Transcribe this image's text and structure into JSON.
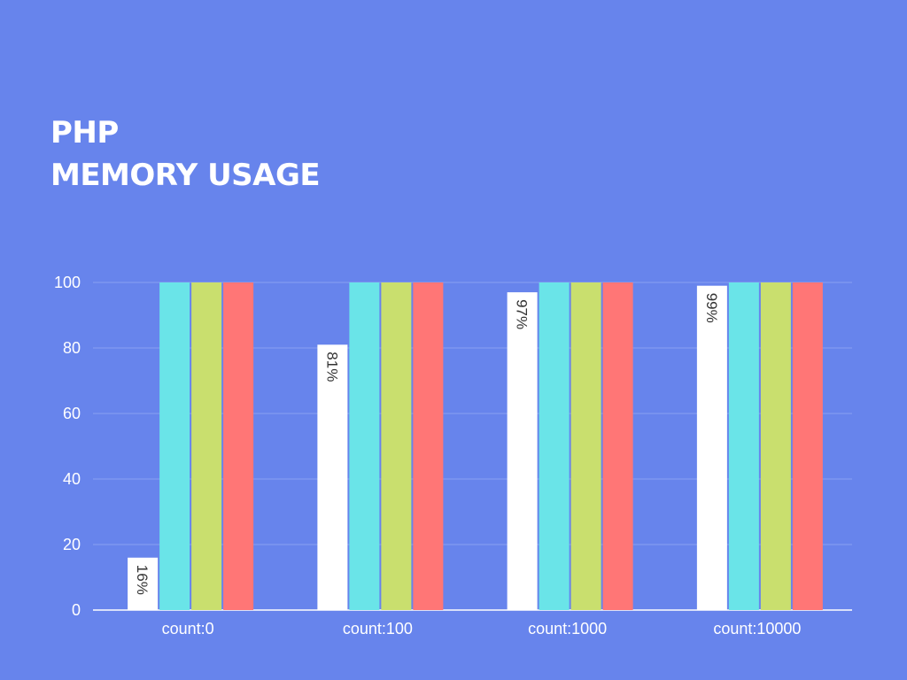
{
  "title": {
    "line1": "PHP",
    "line2": "MEMORY USAGE"
  },
  "colors": {
    "background": "#6784ec",
    "gridline": "#8aa0f2",
    "axis": "#ffffff",
    "series": [
      "#ffffff",
      "#6ae4e8",
      "#c9df6e",
      "#ff7676"
    ]
  },
  "chart_data": {
    "type": "bar",
    "title": "PHP MEMORY USAGE",
    "xlabel": "",
    "ylabel": "",
    "ylim": [
      0,
      100
    ],
    "yticks": [
      0,
      20,
      40,
      60,
      80,
      100
    ],
    "grid": true,
    "categories": [
      "count:0",
      "count:100",
      "count:1000",
      "count:10000"
    ],
    "series": [
      {
        "values": [
          16,
          81,
          97,
          99
        ],
        "data_labels": [
          "16%",
          "81%",
          "97%",
          "99%"
        ]
      },
      {
        "values": [
          100,
          100,
          100,
          100
        ]
      },
      {
        "values": [
          100,
          100,
          100,
          100
        ]
      },
      {
        "values": [
          100,
          100,
          100,
          100
        ]
      }
    ]
  }
}
